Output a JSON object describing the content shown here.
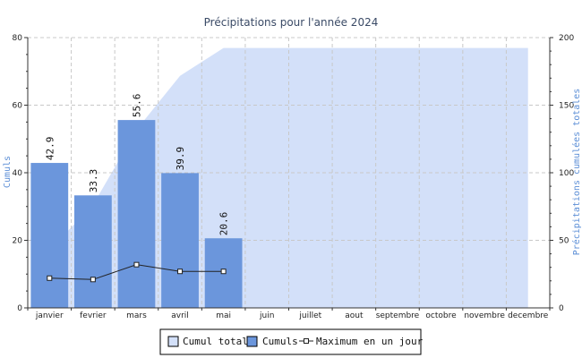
{
  "chart_data": {
    "type": "bar",
    "title": "Précipitations pour l'année 2024",
    "categories": [
      "janvier",
      "fevrier",
      "mars",
      "avril",
      "mai",
      "juin",
      "juillet",
      "aout",
      "septembre",
      "octobre",
      "novembre",
      "decembre"
    ],
    "ylabel": "Cumuls",
    "y2label": "Précipitations cumulées totales",
    "ylim": [
      0,
      80
    ],
    "y2lim": [
      0,
      200
    ],
    "yticks": [
      0,
      20,
      40,
      60,
      80
    ],
    "y2ticks": [
      0,
      50,
      100,
      150,
      200
    ],
    "grid": true,
    "legend_position": "bottom",
    "series": [
      {
        "name": "Cumul total",
        "type": "area",
        "axis": "right",
        "values": [
          42.9,
          76.2,
          131.8,
          171.7,
          192.3,
          192.3,
          192.3,
          192.3,
          192.3,
          192.3,
          192.3,
          192.3
        ],
        "color": "#d3e0f9"
      },
      {
        "name": "Cumuls",
        "type": "bar",
        "axis": "left",
        "values": [
          42.9,
          33.3,
          55.6,
          39.9,
          20.6,
          null,
          null,
          null,
          null,
          null,
          null,
          null
        ],
        "labels": [
          "42.9",
          "33.3",
          "55.6",
          "39.9",
          "20.6"
        ],
        "color": "#6b96dc"
      },
      {
        "name": "Maximum en un jour",
        "type": "line",
        "axis": "left",
        "values": [
          8.8,
          8.4,
          12.8,
          10.8,
          10.8,
          null,
          null,
          null,
          null,
          null,
          null,
          null
        ],
        "color": "#222222"
      }
    ]
  }
}
